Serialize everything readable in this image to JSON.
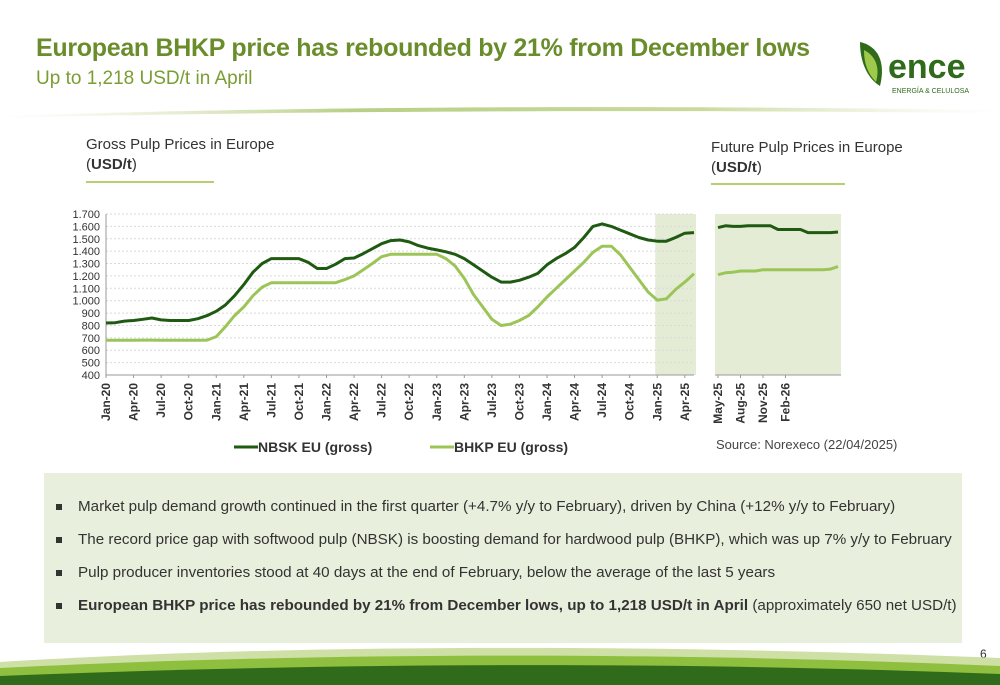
{
  "header": {
    "title": "European BHKP price has rebounded by 21% from December lows",
    "subtitle": "Up to 1,218 USD/t in April"
  },
  "logo": {
    "word": "ence",
    "tagline": "ENERGÍA & CELULOSA",
    "icon": "leaf-icon",
    "colors": {
      "dark": "#2f6b1b",
      "light": "#9ec94a"
    }
  },
  "left_chart_heading": {
    "line1": "Gross Pulp Prices in Europe",
    "unit_open": "(",
    "unit": "USD/t",
    "unit_close": ")"
  },
  "right_chart_heading": {
    "line1": "Future Pulp Prices in Europe",
    "unit_open": "(",
    "unit": "USD/t",
    "unit_close": ")"
  },
  "source": "Source: Norexeco (22/04/2025)",
  "colors": {
    "nbsk": "#1f5a12",
    "bhkp": "#9cc558",
    "shade": "#e4ecd6",
    "title": "#6a8d2c"
  },
  "chart_data": [
    {
      "type": "line",
      "ylim": [
        400,
        1700
      ],
      "yticks": [
        "400",
        "500",
        "600",
        "700",
        "800",
        "900",
        "1.000",
        "1.100",
        "1.200",
        "1.300",
        "1.400",
        "1.500",
        "1.600",
        "1.700"
      ],
      "x_labels": [
        "Jan-20",
        "Apr-20",
        "Jul-20",
        "Oct-20",
        "Jan-21",
        "Apr-21",
        "Jul-21",
        "Oct-21",
        "Jan-22",
        "Apr-22",
        "Jul-22",
        "Oct-22",
        "Jan-23",
        "Apr-23",
        "Jul-23",
        "Oct-23",
        "Jan-24",
        "Apr-24",
        "Jul-24",
        "Oct-24",
        "Jan-25",
        "Apr-25"
      ],
      "shaded_from": "Jan-25",
      "series": [
        {
          "name": "NBSK EU (gross)",
          "values": [
            820,
            822,
            835,
            840,
            850,
            860,
            845,
            840,
            840,
            840,
            855,
            880,
            915,
            965,
            1040,
            1130,
            1230,
            1300,
            1340,
            1340,
            1340,
            1340,
            1310,
            1260,
            1260,
            1295,
            1340,
            1345,
            1380,
            1420,
            1460,
            1485,
            1490,
            1475,
            1445,
            1425,
            1410,
            1395,
            1375,
            1340,
            1290,
            1240,
            1190,
            1150,
            1150,
            1165,
            1190,
            1220,
            1290,
            1340,
            1380,
            1430,
            1510,
            1600,
            1620,
            1600,
            1570,
            1540,
            1510,
            1490,
            1480,
            1480,
            1510,
            1545,
            1550
          ]
        },
        {
          "name": "BHKP EU (gross)",
          "values": [
            680,
            680,
            680,
            680,
            682,
            682,
            680,
            680,
            680,
            680,
            680,
            682,
            710,
            790,
            880,
            950,
            1040,
            1110,
            1145,
            1145,
            1145,
            1145,
            1145,
            1145,
            1145,
            1145,
            1170,
            1200,
            1250,
            1300,
            1355,
            1375,
            1375,
            1375,
            1375,
            1375,
            1375,
            1340,
            1280,
            1180,
            1050,
            950,
            850,
            800,
            810,
            840,
            880,
            950,
            1030,
            1100,
            1170,
            1240,
            1310,
            1390,
            1440,
            1440,
            1370,
            1270,
            1170,
            1070,
            1005,
            1015,
            1090,
            1150,
            1218
          ]
        }
      ]
    },
    {
      "type": "line",
      "ylim": [
        400,
        1700
      ],
      "x_labels": [
        "May-25",
        "Aug-25",
        "Nov-25",
        "Feb-26"
      ],
      "series": [
        {
          "name": "NBSK EU (gross)",
          "values": [
            1590,
            1605,
            1600,
            1600,
            1605,
            1605,
            1605,
            1605,
            1575,
            1575,
            1575,
            1575,
            1550,
            1550,
            1550,
            1550,
            1555
          ]
        },
        {
          "name": "BHKP EU (gross)",
          "values": [
            1210,
            1225,
            1230,
            1240,
            1240,
            1240,
            1250,
            1250,
            1250,
            1250,
            1250,
            1250,
            1250,
            1250,
            1250,
            1255,
            1275
          ]
        }
      ]
    }
  ],
  "bullets": [
    {
      "text": "Market pulp demand growth continued in the first quarter (+4.7% y/y to February), driven by China (+12% y/y to February)"
    },
    {
      "text": "The record price gap with softwood pulp (NBSK) is boosting demand for hardwood pulp (BHKP), which was up 7% y/y to February"
    },
    {
      "text": "Pulp producer inventories stood at 40 days at the end of February, below the average of the last 5 years"
    },
    {
      "text": "European BHKP price has rebounded by 21% from December lows, up to 1,218 USD/t in April",
      "suffix": " (approximately 650 net USD/t)"
    }
  ],
  "page_number": "6"
}
